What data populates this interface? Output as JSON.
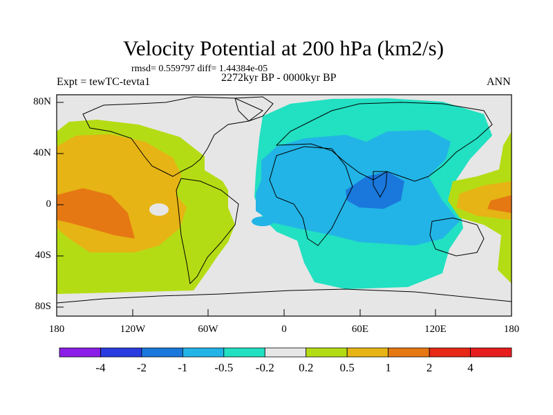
{
  "title": "Velocity Potential at 200 hPa (km2/s)",
  "stats": "rmsd= 0.559797 diff= 1.44384e-05",
  "experiment": "Expt = tewTC-tevta1",
  "period": "2272kyr BP - 0000kyr BP",
  "season": "ANN",
  "y_axis_labels": [
    "80N",
    "40N",
    "0",
    "40S",
    "80S"
  ],
  "x_axis_labels": [
    "180",
    "120W",
    "60W",
    "0",
    "60E",
    "120E",
    "180"
  ],
  "colorbar": {
    "labels": [
      "-4",
      "-2",
      "-1",
      "-0.5",
      "-0.2",
      "0.2",
      "0.5",
      "1",
      "2",
      "4"
    ],
    "colors": [
      "#8a1ee6",
      "#2a3be0",
      "#1a78dc",
      "#22b4e6",
      "#22e0c2",
      "#e6e6e6",
      "#b4dc14",
      "#e6b414",
      "#e67814",
      "#e62814",
      "#e61e1e"
    ]
  }
}
